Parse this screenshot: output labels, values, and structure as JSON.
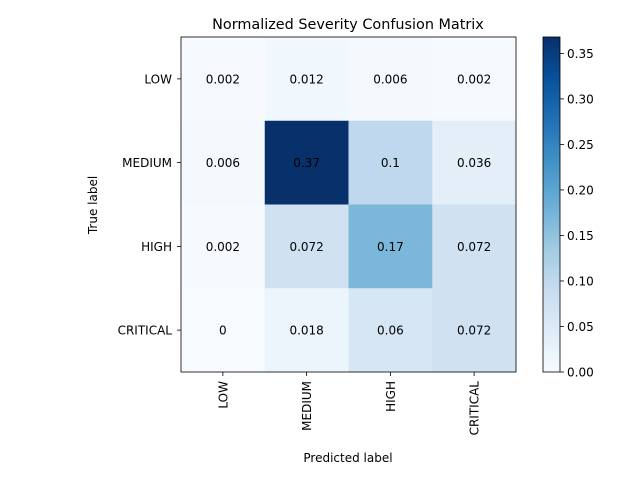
{
  "chart_data": {
    "type": "heatmap",
    "title": "Normalized Severity Confusion Matrix",
    "xlabel": "Predicted label",
    "ylabel": "True label",
    "x_categories": [
      "LOW",
      "MEDIUM",
      "HIGH",
      "CRITICAL"
    ],
    "y_categories": [
      "LOW",
      "MEDIUM",
      "HIGH",
      "CRITICAL"
    ],
    "values": [
      [
        0.002,
        0.012,
        0.006,
        0.002
      ],
      [
        0.006,
        0.37,
        0.1,
        0.036
      ],
      [
        0.002,
        0.072,
        0.17,
        0.072
      ],
      [
        0,
        0.018,
        0.06,
        0.072
      ]
    ],
    "cell_labels": [
      [
        "0.002",
        "0.012",
        "0.006",
        "0.002"
      ],
      [
        "0.006",
        "0.37",
        "0.1",
        "0.036"
      ],
      [
        "0.002",
        "0.072",
        "0.17",
        "0.072"
      ],
      [
        "0",
        "0.018",
        "0.06",
        "0.072"
      ]
    ],
    "colormap": "Blues",
    "colorbar": {
      "range": [
        0,
        0.368
      ],
      "ticks": [
        0.0,
        0.05,
        0.1,
        0.15,
        0.2,
        0.25,
        0.3,
        0.35
      ],
      "tick_labels": [
        "0.00",
        "0.05",
        "0.10",
        "0.15",
        "0.20",
        "0.25",
        "0.30",
        "0.35"
      ]
    },
    "colors": {
      "text_dark": "#08306b",
      "text_light": "#f7fbff"
    },
    "grid": false
  }
}
